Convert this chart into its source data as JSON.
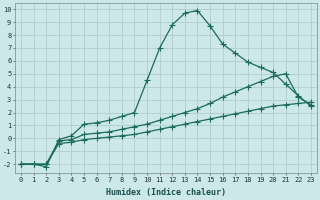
{
  "xlabel": "Humidex (Indice chaleur)",
  "ylabel": "",
  "xlim": [
    -0.5,
    23.5
  ],
  "ylim": [
    -2.7,
    10.5
  ],
  "xticks": [
    0,
    1,
    2,
    3,
    4,
    5,
    6,
    7,
    8,
    9,
    10,
    11,
    12,
    13,
    14,
    15,
    16,
    17,
    18,
    19,
    20,
    21,
    22,
    23
  ],
  "yticks": [
    -2,
    -1,
    0,
    1,
    2,
    3,
    4,
    5,
    6,
    7,
    8,
    9,
    10
  ],
  "bg_color": "#cde8e8",
  "line_color": "#1a6b5a",
  "grid_color": "#b0cccc",
  "line1_x": [
    0,
    1,
    2,
    3,
    4,
    5,
    6,
    7,
    8,
    9,
    10,
    11,
    12,
    13,
    14,
    15,
    16,
    17,
    18,
    19,
    20,
    21,
    22,
    23
  ],
  "line1_y": [
    -2,
    -2,
    -2.2,
    -0.1,
    0.2,
    1.1,
    1.2,
    1.4,
    1.7,
    2.0,
    4.5,
    7.0,
    8.8,
    9.7,
    9.9,
    8.7,
    7.3,
    6.6,
    5.9,
    5.5,
    5.1,
    4.2,
    3.3,
    2.5
  ],
  "line2_x": [
    0,
    1,
    2,
    3,
    4,
    5,
    6,
    7,
    8,
    9,
    10,
    11,
    12,
    13,
    14,
    15,
    16,
    17,
    18,
    19,
    20,
    21,
    22,
    23
  ],
  "line2_y": [
    -2,
    -2,
    -2,
    -0.2,
    -0.1,
    0.3,
    0.4,
    0.5,
    0.7,
    0.9,
    1.1,
    1.4,
    1.7,
    2.0,
    2.3,
    2.7,
    3.2,
    3.6,
    4.0,
    4.4,
    4.8,
    5.0,
    3.2,
    2.6
  ],
  "line3_x": [
    0,
    1,
    2,
    3,
    4,
    5,
    6,
    7,
    8,
    9,
    10,
    11,
    12,
    13,
    14,
    15,
    16,
    17,
    18,
    19,
    20,
    21,
    22,
    23
  ],
  "line3_y": [
    -2,
    -2,
    -2,
    -0.4,
    -0.3,
    -0.1,
    0.0,
    0.1,
    0.2,
    0.3,
    0.5,
    0.7,
    0.9,
    1.1,
    1.3,
    1.5,
    1.7,
    1.9,
    2.1,
    2.3,
    2.5,
    2.6,
    2.7,
    2.8
  ],
  "marker": "+",
  "markersize": 4,
  "linewidth": 0.9,
  "tick_fontsize": 5.0,
  "xlabel_fontsize": 6.0
}
